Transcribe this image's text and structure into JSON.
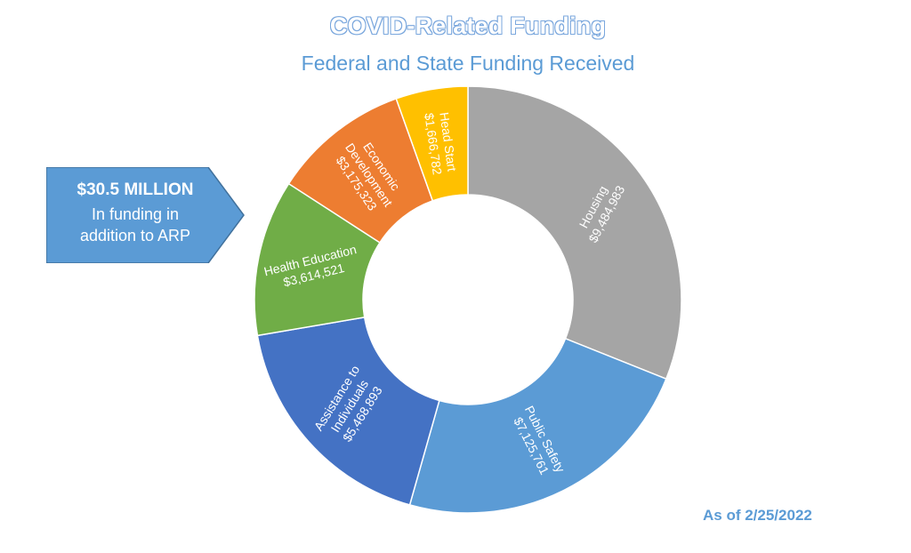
{
  "chart_data": {
    "type": "pie",
    "title": "COVID-Related Funding",
    "subtitle": "Federal and State Funding Received",
    "slices": [
      {
        "label": "Housing",
        "value": 9484983,
        "value_label": "$9,484,983",
        "color": "#a5a5a5"
      },
      {
        "label": "Public Safety",
        "value": 7125761,
        "value_label": "$7,125,761",
        "color": "#5b9bd5"
      },
      {
        "label": "Assistance to Individuals",
        "value": 5468893,
        "value_label": "$5,468,893",
        "color": "#4472c4"
      },
      {
        "label": "Health Education",
        "value": 3614521,
        "value_label": "$3,614,521",
        "color": "#70ad47"
      },
      {
        "label": "Economic Development",
        "value": 3175323,
        "value_label": "$3,175,323",
        "color": "#ed7d31"
      },
      {
        "label": "Head Start",
        "value": 1666782,
        "value_label": "$1,666,782",
        "color": "#ffc000"
      }
    ]
  },
  "callout": {
    "amount": "$30.5 MILLION",
    "line2": "In funding in",
    "line3": "addition to ARP",
    "color": "#5b9bd5"
  },
  "note": "As of 2/25/2022"
}
